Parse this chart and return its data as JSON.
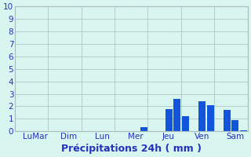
{
  "tick_labels": [
    "LuMar",
    "Dim",
    "Lun",
    "Mer",
    "Jeu",
    "Ven",
    "Sam"
  ],
  "bar_color": "#1155dd",
  "background_color": "#d8f5f0",
  "grid_color": "#aabbbb",
  "text_color": "#2233bb",
  "xlabel": "Précipitations 24h ( mm )",
  "ylim": [
    0,
    10
  ],
  "yticks": [
    0,
    1,
    2,
    3,
    4,
    5,
    6,
    7,
    8,
    9,
    10
  ],
  "xlabel_fontsize": 9,
  "tick_fontsize": 7.5,
  "n_slots": 28,
  "bar_data": [
    {
      "slot": 0,
      "val": 0
    },
    {
      "slot": 1,
      "val": 0
    },
    {
      "slot": 2,
      "val": 0
    },
    {
      "slot": 3,
      "val": 0
    },
    {
      "slot": 4,
      "val": 0
    },
    {
      "slot": 5,
      "val": 0
    },
    {
      "slot": 6,
      "val": 0
    },
    {
      "slot": 7,
      "val": 0
    },
    {
      "slot": 8,
      "val": 0
    },
    {
      "slot": 9,
      "val": 0
    },
    {
      "slot": 10,
      "val": 0
    },
    {
      "slot": 11,
      "val": 0
    },
    {
      "slot": 12,
      "val": 0
    },
    {
      "slot": 13,
      "val": 0
    },
    {
      "slot": 14,
      "val": 0
    },
    {
      "slot": 15,
      "val": 0.35
    },
    {
      "slot": 16,
      "val": 0
    },
    {
      "slot": 17,
      "val": 0
    },
    {
      "slot": 18,
      "val": 1.8
    },
    {
      "slot": 19,
      "val": 2.6
    },
    {
      "slot": 20,
      "val": 1.2
    },
    {
      "slot": 21,
      "val": 0
    },
    {
      "slot": 22,
      "val": 2.4
    },
    {
      "slot": 23,
      "val": 2.1
    },
    {
      "slot": 24,
      "val": 0
    },
    {
      "slot": 25,
      "val": 1.7
    },
    {
      "slot": 26,
      "val": 0.9
    },
    {
      "slot": 27,
      "val": 0.1
    }
  ],
  "group_tick_positions": [
    2,
    6,
    10,
    14,
    18,
    22,
    26
  ],
  "group_boundaries": [
    0,
    4,
    8,
    12,
    16,
    20,
    24,
    28
  ]
}
